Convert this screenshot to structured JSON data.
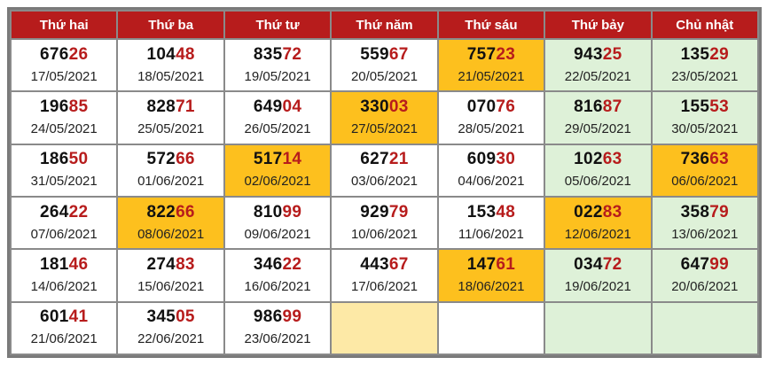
{
  "headers": [
    "Thứ hai",
    "Thứ ba",
    "Thứ tư",
    "Thứ năm",
    "Thứ sáu",
    "Thứ bảy",
    "Chủ nhật"
  ],
  "colors": {
    "header_bg": "#b71c1c",
    "accent_digits": "#b71c1c",
    "highlight": "#fdc01e",
    "weekend": "#def1d8",
    "pale_highlight": "#fde9a6"
  },
  "weeks": [
    [
      {
        "head": "676",
        "tail": "26",
        "date": "17/05/2021",
        "style": ""
      },
      {
        "head": "104",
        "tail": "48",
        "date": "18/05/2021",
        "style": ""
      },
      {
        "head": "835",
        "tail": "72",
        "date": "19/05/2021",
        "style": ""
      },
      {
        "head": "559",
        "tail": "67",
        "date": "20/05/2021",
        "style": ""
      },
      {
        "head": "757",
        "tail": "23",
        "date": "21/05/2021",
        "style": "hl"
      },
      {
        "head": "943",
        "tail": "25",
        "date": "22/05/2021",
        "style": "weekend"
      },
      {
        "head": "135",
        "tail": "29",
        "date": "23/05/2021",
        "style": "weekend"
      }
    ],
    [
      {
        "head": "196",
        "tail": "85",
        "date": "24/05/2021",
        "style": ""
      },
      {
        "head": "828",
        "tail": "71",
        "date": "25/05/2021",
        "style": ""
      },
      {
        "head": "649",
        "tail": "04",
        "date": "26/05/2021",
        "style": ""
      },
      {
        "head": "330",
        "tail": "03",
        "date": "27/05/2021",
        "style": "hl"
      },
      {
        "head": "070",
        "tail": "76",
        "date": "28/05/2021",
        "style": ""
      },
      {
        "head": "816",
        "tail": "87",
        "date": "29/05/2021",
        "style": "weekend"
      },
      {
        "head": "155",
        "tail": "53",
        "date": "30/05/2021",
        "style": "weekend"
      }
    ],
    [
      {
        "head": "186",
        "tail": "50",
        "date": "31/05/2021",
        "style": ""
      },
      {
        "head": "572",
        "tail": "66",
        "date": "01/06/2021",
        "style": ""
      },
      {
        "head": "517",
        "tail": "14",
        "date": "02/06/2021",
        "style": "hl"
      },
      {
        "head": "627",
        "tail": "21",
        "date": "03/06/2021",
        "style": ""
      },
      {
        "head": "609",
        "tail": "30",
        "date": "04/06/2021",
        "style": ""
      },
      {
        "head": "102",
        "tail": "63",
        "date": "05/06/2021",
        "style": "weekend"
      },
      {
        "head": "736",
        "tail": "63",
        "date": "06/06/2021",
        "style": "hl"
      }
    ],
    [
      {
        "head": "264",
        "tail": "22",
        "date": "07/06/2021",
        "style": ""
      },
      {
        "head": "822",
        "tail": "66",
        "date": "08/06/2021",
        "style": "hl"
      },
      {
        "head": "810",
        "tail": "99",
        "date": "09/06/2021",
        "style": ""
      },
      {
        "head": "929",
        "tail": "79",
        "date": "10/06/2021",
        "style": ""
      },
      {
        "head": "153",
        "tail": "48",
        "date": "11/06/2021",
        "style": ""
      },
      {
        "head": "022",
        "tail": "83",
        "date": "12/06/2021",
        "style": "hl"
      },
      {
        "head": "358",
        "tail": "79",
        "date": "13/06/2021",
        "style": "weekend"
      }
    ],
    [
      {
        "head": "181",
        "tail": "46",
        "date": "14/06/2021",
        "style": ""
      },
      {
        "head": "274",
        "tail": "83",
        "date": "15/06/2021",
        "style": ""
      },
      {
        "head": "346",
        "tail": "22",
        "date": "16/06/2021",
        "style": ""
      },
      {
        "head": "443",
        "tail": "67",
        "date": "17/06/2021",
        "style": ""
      },
      {
        "head": "147",
        "tail": "61",
        "date": "18/06/2021",
        "style": "hl"
      },
      {
        "head": "034",
        "tail": "72",
        "date": "19/06/2021",
        "style": "weekend"
      },
      {
        "head": "647",
        "tail": "99",
        "date": "20/06/2021",
        "style": "weekend"
      }
    ],
    [
      {
        "head": "601",
        "tail": "41",
        "date": "21/06/2021",
        "style": ""
      },
      {
        "head": "345",
        "tail": "05",
        "date": "22/06/2021",
        "style": ""
      },
      {
        "head": "986",
        "tail": "99",
        "date": "23/06/2021",
        "style": ""
      },
      {
        "head": "",
        "tail": "",
        "date": "",
        "style": "pale"
      },
      {
        "head": "",
        "tail": "",
        "date": "",
        "style": ""
      },
      {
        "head": "",
        "tail": "",
        "date": "",
        "style": "weekend"
      },
      {
        "head": "",
        "tail": "",
        "date": "",
        "style": "weekend"
      }
    ]
  ]
}
